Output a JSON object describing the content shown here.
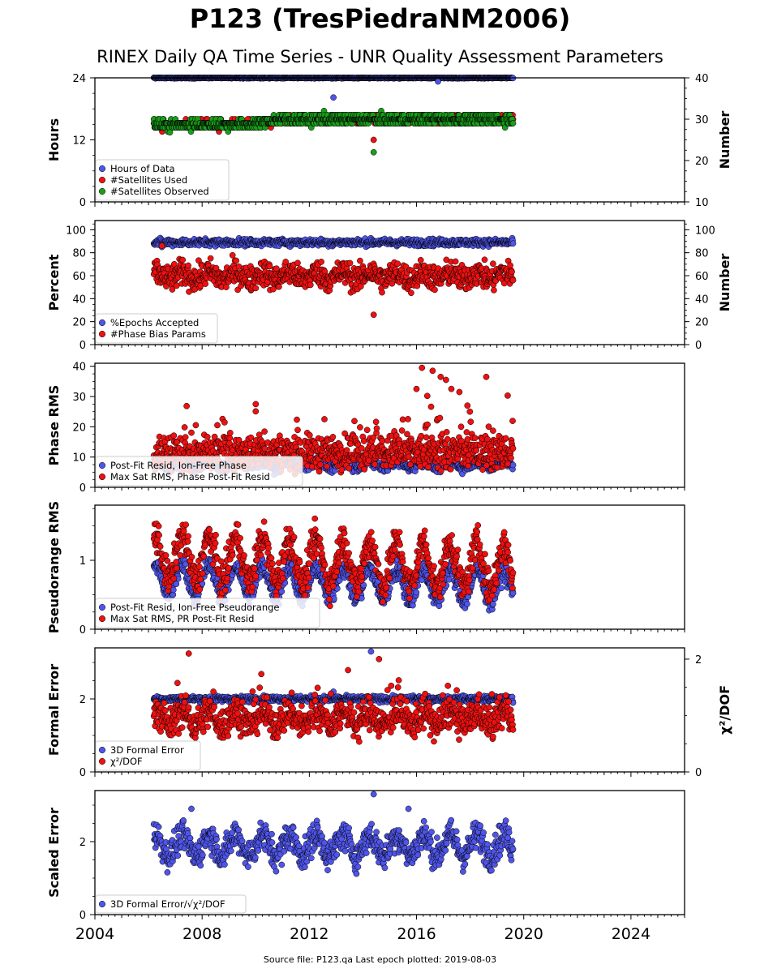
{
  "title": "P123 (TresPiedraNM2006)",
  "subtitle": "RINEX Daily QA Time Series - UNR Quality Assessment Parameters",
  "footer": "Source file: P123.qa Last epoch plotted: 2019-08-03",
  "colors": {
    "blue": "#4f55e8",
    "red": "#ee1111",
    "green": "#1a9e1a",
    "edge": "#000000"
  },
  "x_axis": {
    "range": [
      2004,
      2026
    ],
    "ticks": [
      2004,
      2008,
      2012,
      2016,
      2020,
      2024
    ],
    "labels": [
      "2004",
      "2008",
      "2012",
      "2016",
      "2020",
      "2024"
    ]
  },
  "chart_data": [
    {
      "type": "scatter",
      "ylabel": "Hours",
      "ylim": [
        0,
        24
      ],
      "yticks": [
        0,
        12,
        24
      ],
      "ytick_labels": [
        "0",
        "12",
        "24"
      ],
      "y2label": "Number",
      "y2lim": [
        10,
        40
      ],
      "y2ticks": [
        10,
        20,
        30,
        40
      ],
      "y2tick_labels": [
        "10",
        "20",
        "30",
        "40"
      ],
      "legend_position": "lower-left",
      "series": [
        {
          "name": "Hours of Data",
          "color": "blue",
          "axis": "left",
          "x_range": [
            2006.2,
            2019.6
          ],
          "base": 24,
          "noise": 0.05,
          "outliers": [
            [
              2012.9,
              20.2
            ],
            [
              2016.8,
              23.3
            ]
          ]
        },
        {
          "name": "#Satellites Used",
          "color": "red",
          "axis": "right",
          "x_range": [
            2006.2,
            2019.6
          ],
          "base": 29.8,
          "trend": [
            [
              2006.2,
              28.6
            ],
            [
              2010.0,
              28.8
            ],
            [
              2010.8,
              30.0
            ],
            [
              2019.6,
              30.0
            ]
          ],
          "noise": 0.5,
          "outliers": [
            [
              2014.4,
              25.0
            ],
            [
              2009.7,
              30.0
            ]
          ]
        },
        {
          "name": "#Satellites Observed",
          "color": "green",
          "axis": "right",
          "x_range": [
            2006.2,
            2019.6
          ],
          "base": 29.6,
          "trend": [
            [
              2006.2,
              28.6
            ],
            [
              2010.0,
              28.8
            ],
            [
              2010.8,
              30.0
            ],
            [
              2019.6,
              30.0
            ]
          ],
          "noise": 0.6,
          "outliers": [
            [
              2014.4,
              22.0
            ],
            [
              2006.8,
              26.8
            ]
          ]
        }
      ]
    },
    {
      "type": "scatter",
      "ylabel": "Percent",
      "ylim": [
        0,
        108
      ],
      "yticks": [
        0,
        20,
        40,
        60,
        80,
        100
      ],
      "ytick_labels": [
        "0",
        "20",
        "40",
        "60",
        "80",
        "100"
      ],
      "y2label": "Number",
      "y2lim": [
        0,
        108
      ],
      "y2ticks": [
        0,
        20,
        40,
        60,
        80,
        100
      ],
      "y2tick_labels": [
        "0",
        "20",
        "40",
        "60",
        "80",
        "100"
      ],
      "legend_position": "lower-left",
      "series": [
        {
          "name": "%Epochs Accepted",
          "color": "blue",
          "axis": "left",
          "x_range": [
            2006.2,
            2019.6
          ],
          "base": 89,
          "noise": 1.5,
          "outliers": [
            [
              2006.5,
              85
            ]
          ]
        },
        {
          "name": "#Phase Bias Params",
          "color": "red",
          "axis": "right",
          "x_range": [
            2006.2,
            2019.6
          ],
          "base": 60,
          "noise": 5.5,
          "seasonal": 3,
          "outliers": [
            [
              2014.4,
              26
            ],
            [
              2006.5,
              86
            ]
          ]
        }
      ]
    },
    {
      "type": "scatter",
      "ylabel": "Phase RMS",
      "ylim": [
        0,
        41
      ],
      "yticks": [
        0,
        10,
        20,
        30,
        40
      ],
      "ytick_labels": [
        "0",
        "10",
        "20",
        "30",
        "40"
      ],
      "legend_position": "lower-left",
      "series": [
        {
          "name": "Post-Fit Resid, Ion-Free Phase",
          "color": "blue",
          "axis": "left",
          "x_range": [
            2006.2,
            2019.6
          ],
          "base": 7.5,
          "noise": 0.8,
          "seasonal": 1.0
        },
        {
          "name": "Max Sat RMS, Phase Post-Fit Resid",
          "color": "red",
          "axis": "left",
          "x_range": [
            2006.2,
            2019.6
          ],
          "base": 11.5,
          "noise": 2.8,
          "spikes": 0.08,
          "spike_max": 12,
          "outliers": [
            [
              2016.2,
              39.5
            ],
            [
              2016.6,
              38.5
            ],
            [
              2016.9,
              36.5
            ],
            [
              2017.1,
              35.5
            ],
            [
              2017.3,
              32.5
            ],
            [
              2017.6,
              31.5
            ],
            [
              2018.6,
              36.5
            ],
            [
              2016.4,
              30.2
            ],
            [
              2019.4,
              30.3
            ],
            [
              2016.0,
              32.5
            ],
            [
              2017.9,
              27.0
            ],
            [
              2010.0,
              27.5
            ]
          ]
        }
      ]
    },
    {
      "type": "scatter",
      "ylabel": "Pseudorange RMS",
      "ylim": [
        0,
        1.8
      ],
      "yticks": [
        0,
        1
      ],
      "ytick_labels": [
        "0",
        "1"
      ],
      "legend_position": "lower-left",
      "series": [
        {
          "name": "Post-Fit Resid, Ion-Free Pseudorange",
          "color": "blue",
          "axis": "left",
          "x_range": [
            2006.2,
            2019.6
          ],
          "base": 0.72,
          "noise": 0.07,
          "seasonal": 0.22,
          "drift": -0.1
        },
        {
          "name": "Max Sat RMS, PR Post-Fit Resid",
          "color": "red",
          "axis": "left",
          "x_range": [
            2006.2,
            2019.6
          ],
          "base": 1.05,
          "noise": 0.12,
          "seasonal": 0.32,
          "drift": -0.15
        }
      ]
    },
    {
      "type": "scatter",
      "ylabel": "Formal Error",
      "ylim": [
        0,
        3.4
      ],
      "yticks": [
        0,
        2
      ],
      "ytick_labels": [
        "0",
        "2"
      ],
      "y2label": "χ²/DOF",
      "y2lim": [
        0,
        2.2
      ],
      "y2ticks": [
        0,
        2
      ],
      "y2tick_labels": [
        "0",
        "2"
      ],
      "legend_position": "lower-left",
      "series": [
        {
          "name": "3D Formal Error",
          "color": "blue",
          "axis": "left",
          "x_range": [
            2006.2,
            2019.6
          ],
          "base": 2.0,
          "noise": 0.04,
          "outliers": [
            [
              2014.3,
              3.3
            ],
            [
              2012.9,
              2.2
            ]
          ]
        },
        {
          "name": "χ²/DOF",
          "color": "red",
          "axis": "right",
          "x_range": [
            2006.2,
            2019.6
          ],
          "base": 0.95,
          "noise": 0.14,
          "seasonal": 0.12,
          "spikes": 0.05,
          "spike_max": 0.6,
          "outliers": [
            [
              2007.5,
              2.1
            ],
            [
              2014.6,
              2.0
            ]
          ]
        }
      ]
    },
    {
      "type": "scatter",
      "ylabel": "Scaled Error",
      "ylim": [
        0,
        3.4
      ],
      "yticks": [
        0,
        2
      ],
      "ytick_labels": [
        "0",
        "2"
      ],
      "legend_position": "lower-left",
      "series": [
        {
          "name": "3D Formal Error/√χ²/DOF",
          "color": "blue",
          "axis": "left",
          "x_range": [
            2006.2,
            2019.6
          ],
          "base": 1.9,
          "noise": 0.2,
          "seasonal": 0.28,
          "outliers": [
            [
              2014.4,
              3.3
            ],
            [
              2007.6,
              2.9
            ],
            [
              2015.7,
              2.9
            ]
          ]
        }
      ]
    }
  ]
}
